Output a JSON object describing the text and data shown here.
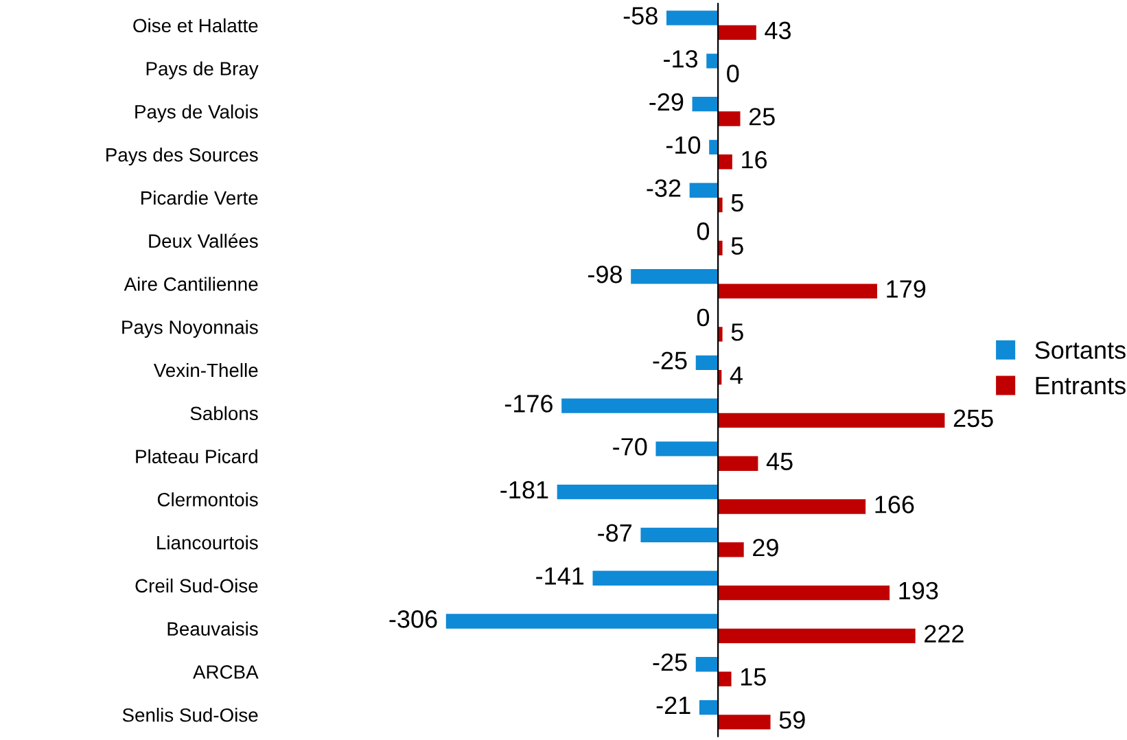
{
  "chart_data": {
    "type": "bar",
    "orientation": "horizontal",
    "data_labels": true,
    "legend": "right",
    "grid": false,
    "categories": [
      "Oise et Halatte",
      "Pays de Bray",
      "Pays de Valois",
      "Pays des Sources",
      "Picardie Verte",
      "Deux Vallées",
      "Aire Cantilienne",
      "Pays Noyonnais",
      "Vexin-Thelle",
      "Sablons",
      "Plateau Picard",
      "Clermontois",
      "Liancourtois",
      "Creil Sud-Oise",
      "Beauvaisis",
      "ARCBA",
      "Senlis Sud-Oise"
    ],
    "series": [
      {
        "name": "Sortants",
        "color": "#0f8ad6",
        "values": [
          -58,
          -13,
          -29,
          -10,
          -32,
          0,
          -98,
          0,
          -25,
          -176,
          -70,
          -181,
          -87,
          -141,
          -306,
          -25,
          -21
        ]
      },
      {
        "name": "Entrants",
        "color": "#c00000",
        "values": [
          43,
          0,
          25,
          16,
          5,
          5,
          179,
          5,
          4,
          255,
          45,
          166,
          29,
          193,
          222,
          15,
          59
        ]
      }
    ]
  }
}
